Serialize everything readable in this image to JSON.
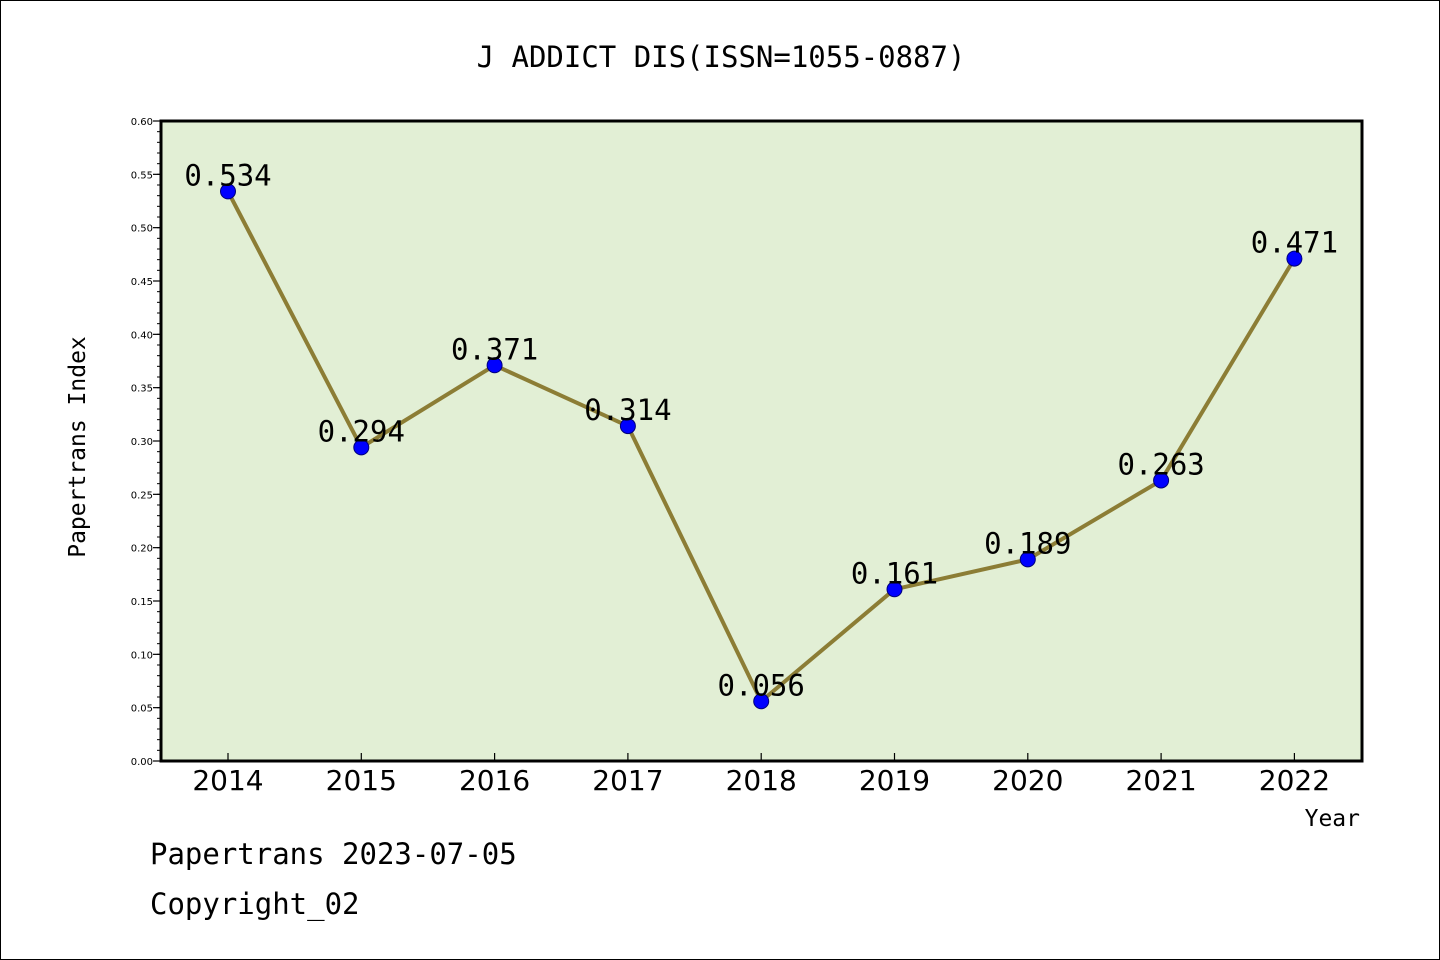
{
  "chart_data": {
    "type": "line",
    "title": "J ADDICT DIS(ISSN=1055-0887)",
    "xlabel": "Year",
    "ylabel": "Papertrans Index",
    "categories": [
      "2014",
      "2015",
      "2016",
      "2017",
      "2018",
      "2019",
      "2020",
      "2021",
      "2022"
    ],
    "values": [
      0.534,
      0.294,
      0.371,
      0.314,
      0.056,
      0.161,
      0.189,
      0.263,
      0.471
    ],
    "data_labels": [
      "0.534",
      "0.294",
      "0.371",
      "0.314",
      "0.056",
      "0.161",
      "0.189",
      "0.263",
      "0.471"
    ],
    "ylim": [
      0.0,
      0.6
    ],
    "yticks": [
      "0.00",
      "0.05",
      "0.10",
      "0.15",
      "0.20",
      "0.25",
      "0.30",
      "0.35",
      "0.40",
      "0.45",
      "0.50",
      "0.55",
      "0.60"
    ],
    "grid": false,
    "colors": {
      "plot_background": "#e2efd5",
      "line": "#8c7d35",
      "marker": "#0000ff"
    }
  },
  "footer": {
    "line1": "Papertrans 2023-07-05",
    "line2": "Copyright_02"
  }
}
